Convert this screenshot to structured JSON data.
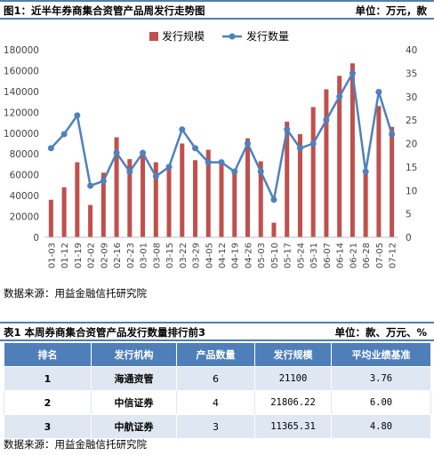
{
  "figure": {
    "title": "图1：近半年券商集合资管产品周发行走势图",
    "unit": "单位：万元，款"
  },
  "chart_data": {
    "type": "bar+line",
    "categories": [
      "01-03",
      "01-12",
      "01-19",
      "02-02",
      "02-09",
      "02-16",
      "02-23",
      "03-01",
      "03-08",
      "03-15",
      "03-22",
      "03-29",
      "04-05",
      "04-12",
      "04-19",
      "04-26",
      "05-03",
      "05-10",
      "05-17",
      "05-24",
      "05-31",
      "06-07",
      "06-14",
      "06-21",
      "06-28",
      "07-05",
      "07-12"
    ],
    "series": [
      {
        "name": "发行规模",
        "type": "bar",
        "axis": "left",
        "color": "#c0504d",
        "values": [
          36000,
          48000,
          72000,
          31000,
          62000,
          96000,
          75000,
          78000,
          72000,
          70000,
          90000,
          74000,
          84000,
          74000,
          64000,
          95000,
          73000,
          14000,
          111000,
          99000,
          125000,
          142000,
          155000,
          167000,
          61000,
          126000,
          106000
        ]
      },
      {
        "name": "发行数量",
        "type": "line",
        "axis": "right",
        "color": "#4f81bd",
        "values": [
          19,
          22,
          26,
          11,
          12,
          18,
          14,
          18,
          13,
          15,
          23,
          19,
          16,
          16,
          14,
          20,
          14,
          8,
          23,
          19,
          20,
          25,
          30,
          35,
          14,
          31,
          22
        ]
      }
    ],
    "y_left": {
      "min": 0,
      "max": 180000,
      "step": 20000
    },
    "y_right": {
      "min": 0,
      "max": 40,
      "step": 5
    },
    "legend_position": "top-center",
    "grid": false
  },
  "source1": "数据来源：用益金融信托研究院",
  "table": {
    "title": "表1 本周券商集合资管产品发行数量排行前3",
    "unit": "单位：款、万元、%",
    "headers": [
      "排名",
      "发行机构",
      "产品数量",
      "发行规模",
      "平均业绩基准"
    ],
    "rows": [
      [
        "1",
        "海通资管",
        "6",
        "21100",
        "3.76"
      ],
      [
        "2",
        "中信证券",
        "4",
        "21806.22",
        "6.00"
      ],
      [
        "3",
        "中航证券",
        "3",
        "11365.31",
        "4.80"
      ]
    ]
  },
  "source2": "数据来源：用益金融信托研究院"
}
